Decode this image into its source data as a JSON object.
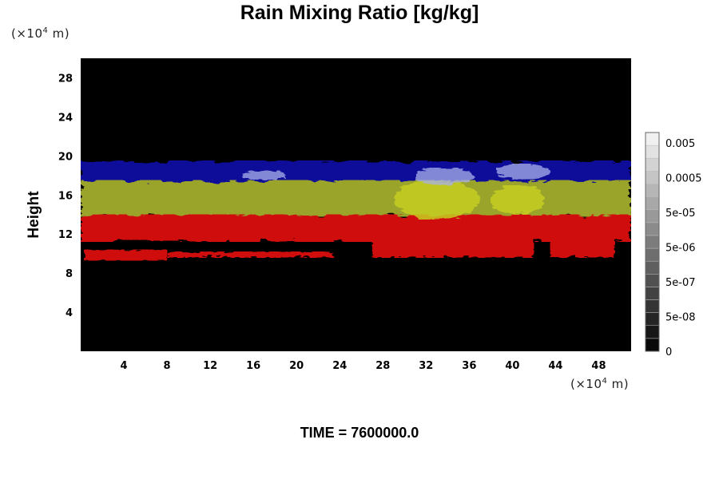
{
  "title": "Rain Mixing Ratio [kg/kg]",
  "y_unit": {
    "prefix": "(×10",
    "exp": "4",
    "suffix": " m)"
  },
  "x_unit": {
    "prefix": "(×10",
    "exp": "4",
    "suffix": " m)"
  },
  "time_label": "TIME = 7600000.0",
  "chart_data": {
    "type": "heatmap",
    "title": "Rain Mixing Ratio [kg/kg]",
    "xlabel": "",
    "ylabel": "Height",
    "x_unit": "(×10^4 m)",
    "y_unit": "(×10^4 m)",
    "xlim": [
      0,
      51
    ],
    "ylim": [
      0,
      30
    ],
    "x_ticks": [
      4,
      8,
      12,
      16,
      20,
      24,
      28,
      32,
      36,
      40,
      44,
      48
    ],
    "y_ticks": [
      4,
      8,
      12,
      16,
      20,
      24,
      28
    ],
    "grid": false,
    "background_color": "#000000",
    "layers": [
      {
        "color": "#0c0c9a",
        "y_range": [
          17.0,
          19.5
        ]
      },
      {
        "color": "#9aa32a",
        "y_range": [
          13.8,
          17.5
        ]
      },
      {
        "color": "#d01010",
        "y_range": [
          9.5,
          14.0
        ]
      }
    ],
    "colorbar": {
      "ticks": [
        "0.005",
        "0.0005",
        "5e-05",
        "5e-06",
        "5e-07",
        "5e-08",
        "0"
      ],
      "min_color": "#000000",
      "max_color": "#f2f2f2",
      "levels": 17
    }
  }
}
